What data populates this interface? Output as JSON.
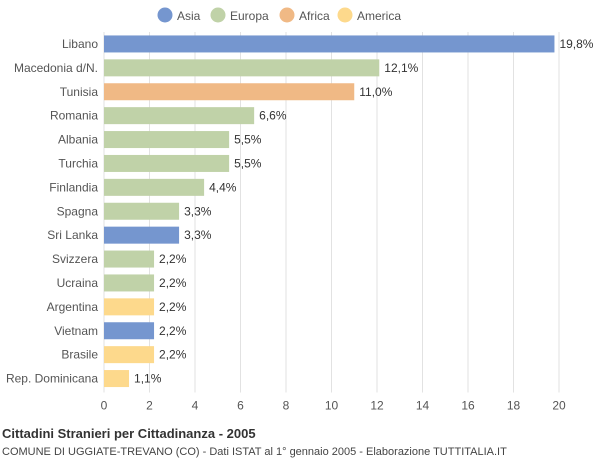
{
  "chart_data": {
    "type": "bar",
    "orientation": "horizontal",
    "title": "Cittadini Stranieri per Cittadinanza - 2005",
    "subtitle": "COMUNE DI UGGIATE-TREVANO (CO) - Dati ISTAT al 1° gennaio 2005 - Elaborazione TUTTITALIA.IT",
    "xlim": [
      0,
      20
    ],
    "x_ticks": [
      0,
      2,
      4,
      6,
      8,
      10,
      12,
      14,
      16,
      18,
      20
    ],
    "grid": true,
    "legend_position": "top-center",
    "legend": [
      {
        "name": "Asia",
        "color": "#7596cf"
      },
      {
        "name": "Europa",
        "color": "#c0d2a8"
      },
      {
        "name": "Africa",
        "color": "#f0b985"
      },
      {
        "name": "America",
        "color": "#fdd98c"
      }
    ],
    "categories": [
      "Libano",
      "Macedonia d/N.",
      "Tunisia",
      "Romania",
      "Albania",
      "Turchia",
      "Finlandia",
      "Spagna",
      "Sri Lanka",
      "Svizzera",
      "Ucraina",
      "Argentina",
      "Vietnam",
      "Brasile",
      "Rep. Dominicana"
    ],
    "values": [
      19.8,
      12.1,
      11.0,
      6.6,
      5.5,
      5.5,
      4.4,
      3.3,
      3.3,
      2.2,
      2.2,
      2.2,
      2.2,
      2.2,
      1.1
    ],
    "value_labels": [
      "19,8%",
      "12,1%",
      "11,0%",
      "6,6%",
      "5,5%",
      "5,5%",
      "4,4%",
      "3,3%",
      "3,3%",
      "2,2%",
      "2,2%",
      "2,2%",
      "2,2%",
      "2,2%",
      "1,1%"
    ],
    "groups": [
      "Asia",
      "Europa",
      "Africa",
      "Europa",
      "Europa",
      "Europa",
      "Europa",
      "Europa",
      "Asia",
      "Europa",
      "Europa",
      "America",
      "Asia",
      "America",
      "America"
    ]
  }
}
